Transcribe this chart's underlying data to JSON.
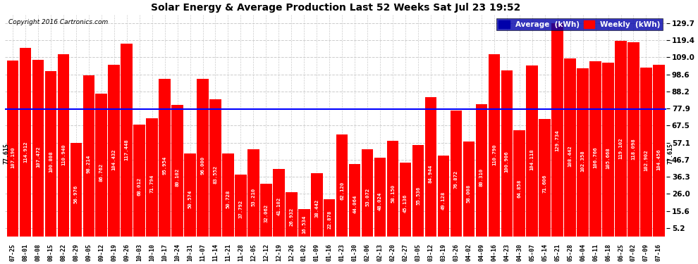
{
  "title": "Solar Energy & Average Production Last 52 Weeks Sat Jul 23 19:52",
  "copyright": "Copyright 2016 Cartronics.com",
  "average_value": 77.615,
  "ylim": [
    0,
    135
  ],
  "yticks": [
    5.2,
    15.6,
    26.0,
    36.3,
    46.7,
    57.1,
    67.5,
    77.9,
    88.2,
    98.6,
    109.0,
    119.4,
    129.7
  ],
  "bar_color": "#ff0000",
  "avg_line_color": "#0000ff",
  "background_color": "#ffffff",
  "plot_bg_color": "#ffffff",
  "grid_color": "#cccccc",
  "categories": [
    "07-25",
    "08-01",
    "08-08",
    "08-15",
    "08-22",
    "08-29",
    "09-05",
    "09-12",
    "09-19",
    "09-26",
    "10-03",
    "10-10",
    "10-17",
    "10-24",
    "10-31",
    "11-07",
    "11-14",
    "11-21",
    "11-28",
    "12-05",
    "12-12",
    "12-19",
    "12-26",
    "01-02",
    "01-09",
    "01-16",
    "01-23",
    "01-30",
    "02-06",
    "02-13",
    "02-20",
    "02-27",
    "03-05",
    "03-12",
    "03-19",
    "03-26",
    "04-02",
    "04-09",
    "04-16",
    "04-23",
    "04-30",
    "05-07",
    "05-14",
    "05-21",
    "05-28",
    "06-04",
    "06-11",
    "06-18",
    "06-25",
    "07-02",
    "07-09",
    "07-16"
  ],
  "values": [
    107.19,
    114.912,
    107.472,
    100.808,
    110.94,
    56.976,
    98.214,
    86.762,
    104.432,
    117.448,
    68.012,
    71.794,
    95.954,
    80.102,
    50.574,
    96.0,
    83.552,
    50.728,
    37.792,
    53.21,
    32.062,
    41.102,
    26.932,
    16.534,
    38.442,
    22.878,
    62.12,
    44.064,
    53.072,
    48.024,
    58.15,
    45.136,
    55.536,
    84.944,
    49.128,
    76.872,
    58.008,
    80.31,
    110.79,
    100.906,
    64.858,
    104.118,
    71.606,
    129.734,
    108.442,
    102.358,
    106.766,
    105.668,
    119.102,
    118.098,
    102.902,
    104.456
  ]
}
